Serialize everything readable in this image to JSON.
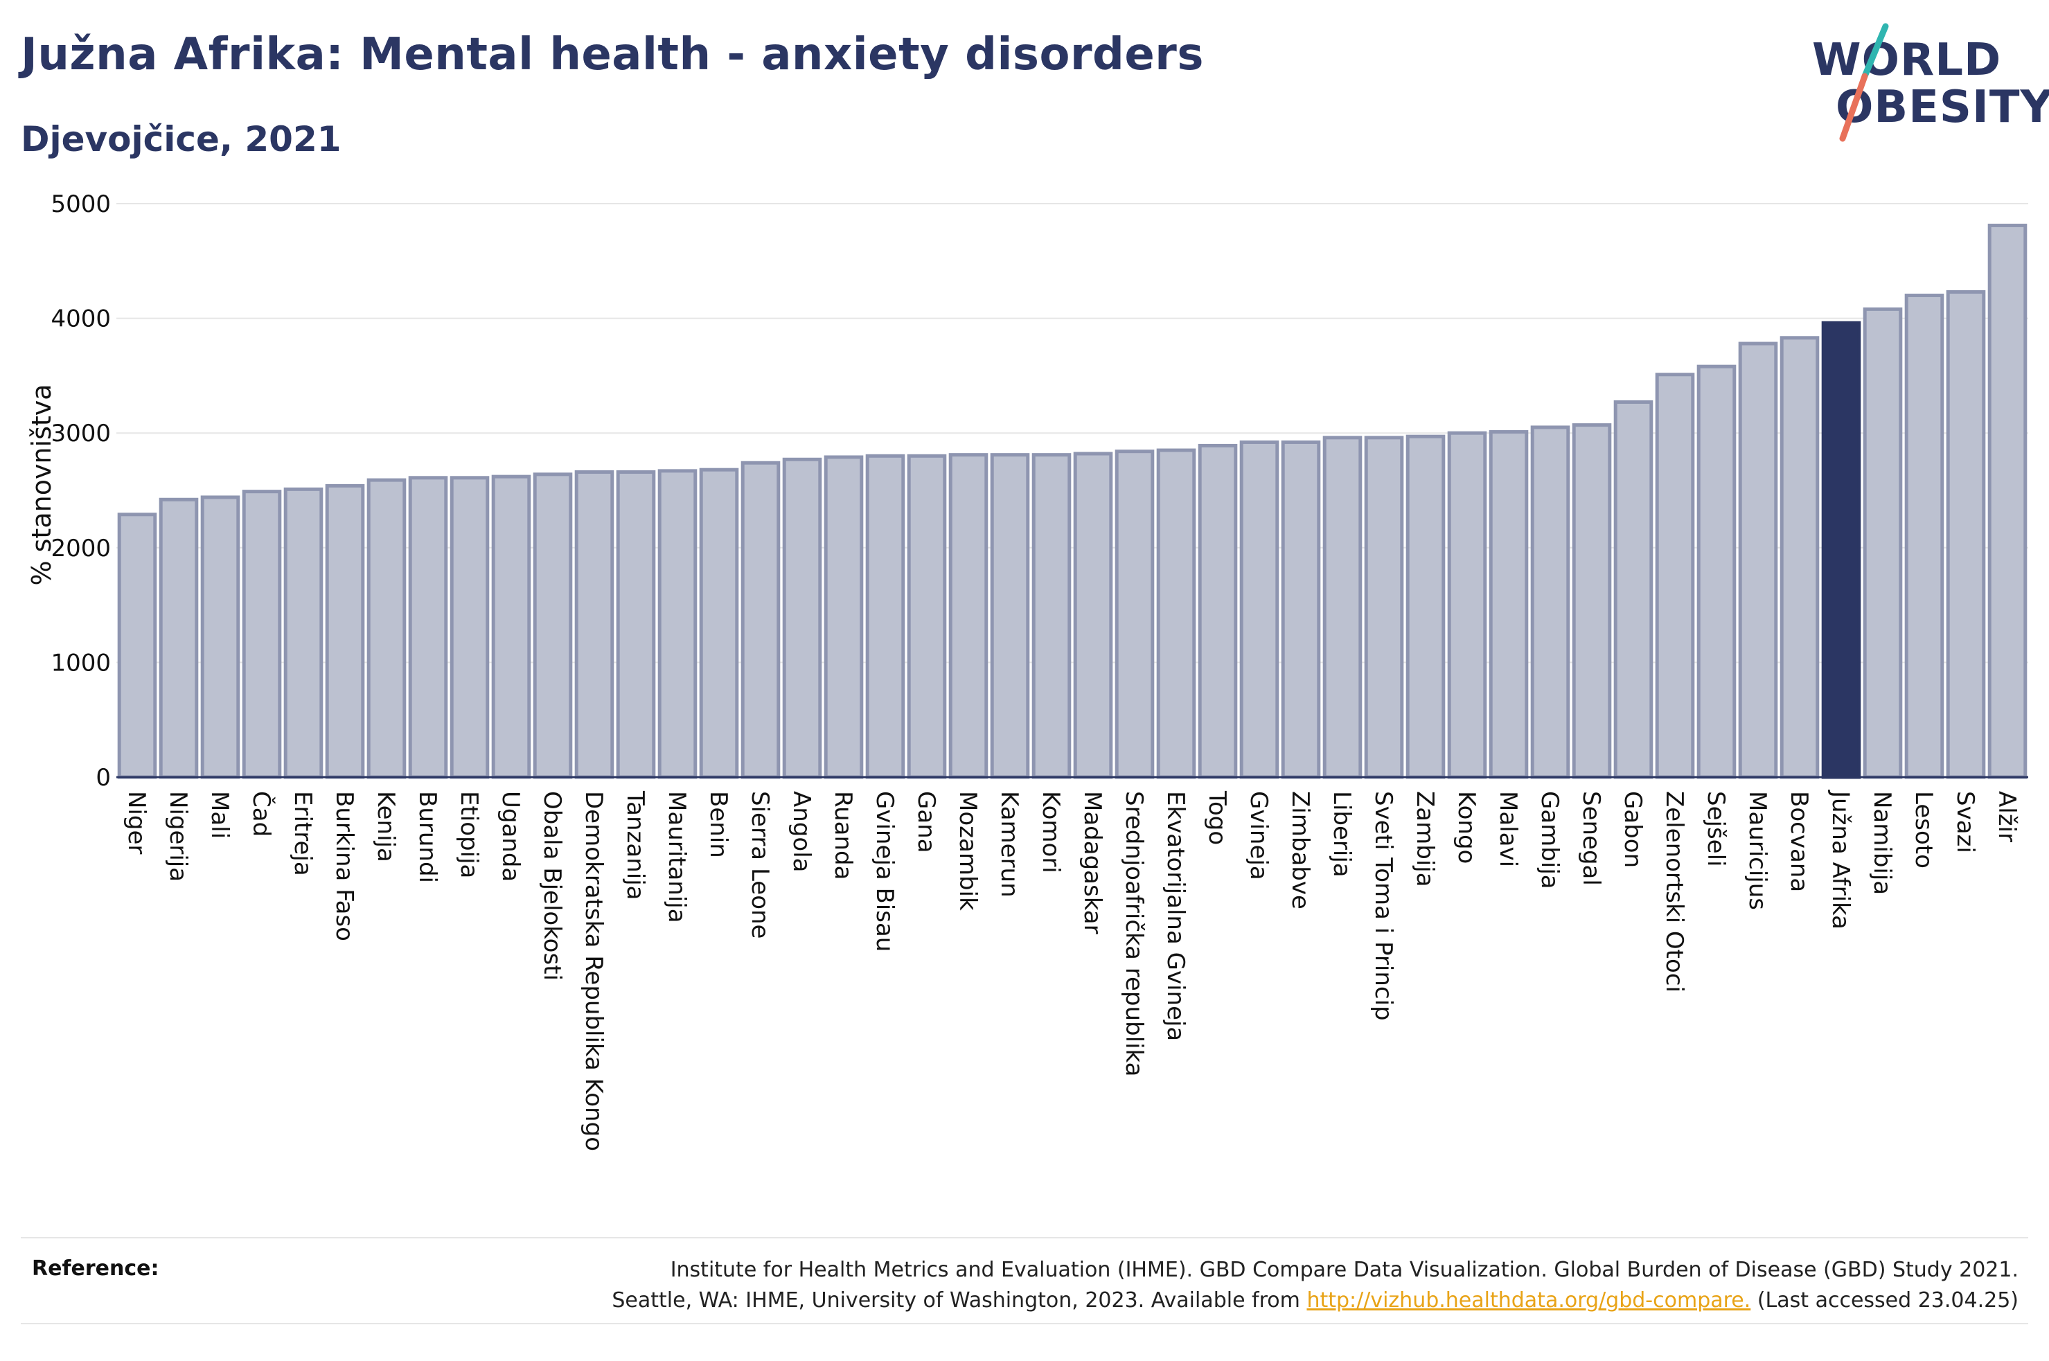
{
  "header": {
    "title": "Južna Afrika: Mental health - anxiety disorders",
    "subtitle": "Djevojčice, 2021"
  },
  "logo": {
    "line1": "WORLD",
    "line2": "OBESITY",
    "colors": {
      "text": "#2b3663",
      "slash_teal": "#2fb5b0",
      "slash_coral": "#e8715a"
    }
  },
  "colors": {
    "bar_fill": "#bcc1d0",
    "bar_stroke": "#8e95b0",
    "highlight_fill": "#2b3663",
    "grid": "#e6e6e6",
    "axis": "#2b3663"
  },
  "chart_data": {
    "type": "bar",
    "ylabel": "% stanovništva",
    "xlabel": "",
    "ylim": [
      0,
      5000
    ],
    "yticks": [
      0,
      1000,
      2000,
      3000,
      4000,
      5000
    ],
    "grid": true,
    "highlight": "Južna Afrika",
    "categories": [
      "Niger",
      "Nigerija",
      "Mali",
      "Čad",
      "Eritreja",
      "Burkina Faso",
      "Kenija",
      "Burundi",
      "Etiopija",
      "Uganda",
      "Obala Bjelokosti",
      "Demokratska Republika Kongo",
      "Tanzanija",
      "Mauritanija",
      "Benin",
      "Sierra Leone",
      "Angola",
      "Ruanda",
      "Gvineja Bisau",
      "Gana",
      "Mozambik",
      "Kamerun",
      "Komori",
      "Madagaskar",
      "Srednjoafrička republika",
      "Ekvatorijalna Gvineja",
      "Togo",
      "Gvineja",
      "Zimbabve",
      "Liberija",
      "Sveti Toma i Princip",
      "Zambija",
      "Kongo",
      "Malavi",
      "Gambija",
      "Senegal",
      "Gabon",
      "Zelenortski Otoci",
      "Sejšeli",
      "Mauricijus",
      "Bocvana",
      "Južna Afrika",
      "Namibija",
      "Lesoto",
      "Svazi",
      "Alžir"
    ],
    "values": [
      2290,
      2420,
      2440,
      2490,
      2510,
      2540,
      2590,
      2610,
      2610,
      2620,
      2640,
      2660,
      2660,
      2670,
      2680,
      2740,
      2770,
      2790,
      2800,
      2800,
      2810,
      2810,
      2810,
      2820,
      2840,
      2850,
      2890,
      2920,
      2920,
      2960,
      2960,
      2970,
      3000,
      3010,
      3050,
      3070,
      3270,
      3510,
      3580,
      3780,
      3830,
      3960,
      4080,
      4200,
      4230,
      4810
    ]
  },
  "reference": {
    "label": "Reference:",
    "line1": "Institute for Health Metrics and Evaluation (IHME). GBD Compare Data Visualization. Global Burden of Disease (GBD) Study 2021.",
    "line2_pre": "Seattle, WA: IHME, University of Washington, 2023. Available from",
    "link": "http://vizhub.healthdata.org/gbd-compare.",
    "line2_post": "(Last accessed 23.04.25)"
  }
}
